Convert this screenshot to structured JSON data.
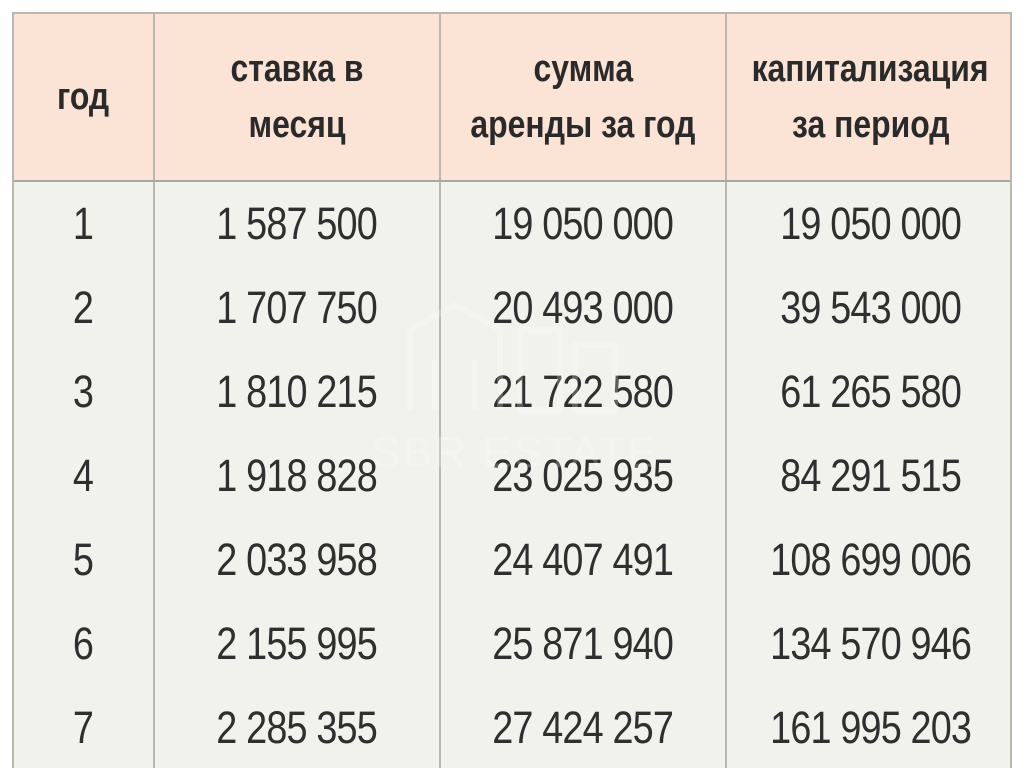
{
  "table": {
    "headers": [
      {
        "line1": "год",
        "line2": ""
      },
      {
        "line1": "ставка в месяц",
        "line2": ""
      },
      {
        "line1": "сумма",
        "line2": "аренды за год"
      },
      {
        "line1": "капитализация",
        "line2": "за период"
      }
    ],
    "rows": [
      [
        "1",
        "1 587 500",
        "19 050 000",
        "19 050 000"
      ],
      [
        "2",
        "1 707 750",
        "20 493 000",
        "39 543 000"
      ],
      [
        "3",
        "1 810 215",
        "21 722 580",
        "61 265 580"
      ],
      [
        "4",
        "1 918 828",
        "23 025 935",
        "84 291 515"
      ],
      [
        "5",
        "2 033 958",
        "24 407 491",
        "108 699 006"
      ],
      [
        "6",
        "2 155 995",
        "25 871 940",
        "134 570 946"
      ],
      [
        "7",
        "2 285 355",
        "27 424 257",
        "161 995 203"
      ]
    ]
  },
  "watermark": {
    "text": "SBR ESTATE",
    "icon": "building-logo-icon"
  },
  "colors": {
    "header_bg": "#fbe3d6",
    "body_bg": "#f2f2ec",
    "border": "#b8b8b0",
    "text": "#2f2f2f"
  }
}
